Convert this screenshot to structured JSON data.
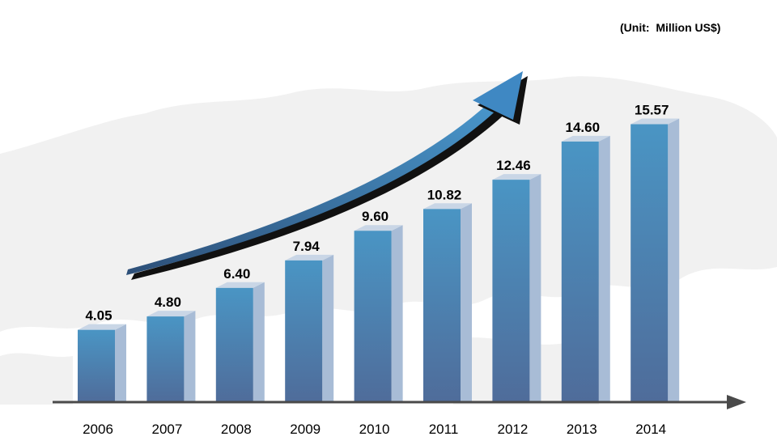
{
  "unit_label": "(Unit:  Million US$)",
  "chart_data": {
    "type": "bar",
    "title": "",
    "xlabel": "",
    "ylabel": "",
    "unit": "(Unit:  Million US$)",
    "categories": [
      "2006",
      "2007",
      "2008",
      "2009",
      "2010",
      "2011",
      "2012",
      "2013",
      "2014"
    ],
    "values": [
      4.05,
      4.8,
      6.4,
      7.94,
      9.6,
      10.82,
      12.46,
      14.6,
      15.57
    ],
    "value_labels": [
      "4.05",
      "4.80",
      "6.40",
      "7.94",
      "9.60",
      "10.82",
      "12.46",
      "14.60",
      "15.57"
    ],
    "ylim": [
      0,
      16.5
    ],
    "grid": false,
    "legend": "none",
    "colors": {
      "bar_top": "#4a95c4",
      "bar_bottom": "#4f6c9a",
      "bar_side": "#a8bcd6",
      "bar_cap": "#c9d6e6",
      "axis": "#4a4a4a",
      "trend_arrow": "#3f7fb6"
    }
  }
}
